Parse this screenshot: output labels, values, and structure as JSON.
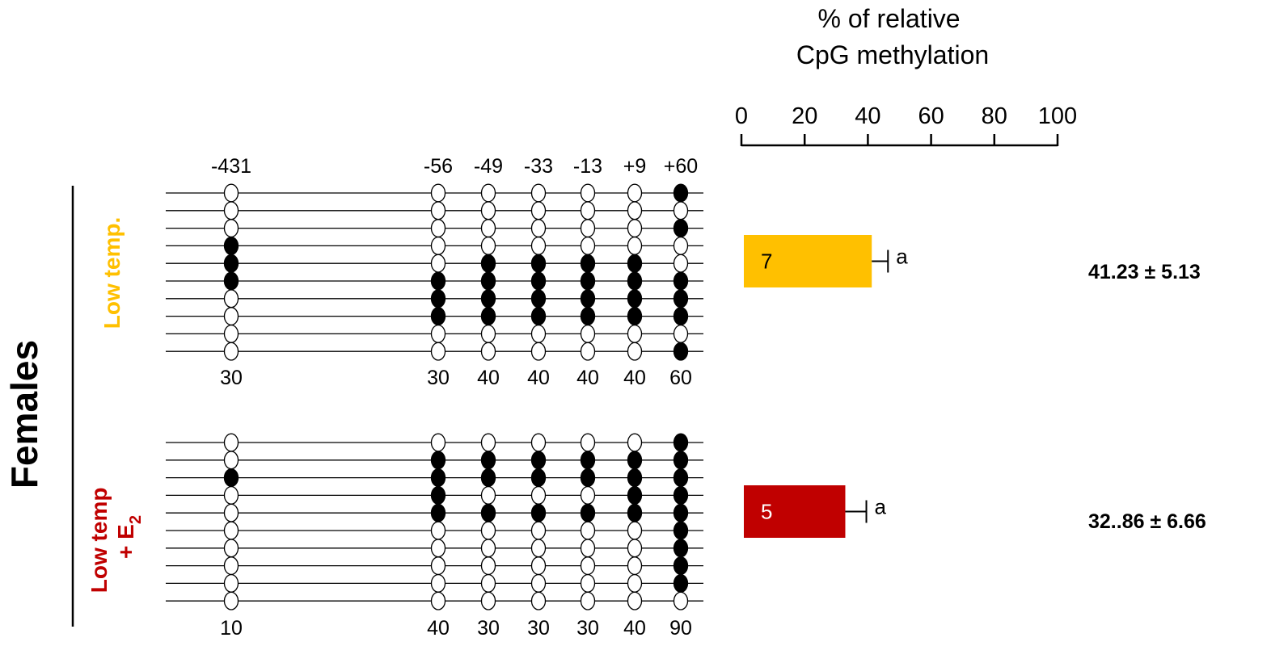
{
  "colors": {
    "filled": "#000000",
    "empty": "#ffffff",
    "low_temp": "#FFC000",
    "low_temp_e2": "#C00000"
  },
  "side_label": "Females",
  "site_labels": [
    "-431",
    "-56",
    "-49",
    "-33",
    "-13",
    "+9",
    "+60"
  ],
  "chart_data": {
    "type": "bar",
    "orientation": "horizontal",
    "title": "% of relative CpG methylation",
    "title_lines": [
      "% of relative",
      "CpG methylation"
    ],
    "xlim": [
      0,
      100
    ],
    "ticks": [
      0,
      20,
      40,
      60,
      80,
      100
    ],
    "categories": [
      "Low temp.",
      "Low temp + E2"
    ],
    "values": [
      41.23,
      32.86
    ],
    "errors": [
      5.13,
      6.66
    ],
    "bar_labels": [
      "7",
      "5"
    ],
    "letters": [
      "a",
      "a"
    ],
    "value_texts": [
      "41.23 ± 5.13",
      "32..86 ± 6.66"
    ]
  },
  "groups": [
    {
      "label": "Low temp.",
      "label_lines": [
        "Low temp."
      ],
      "percentages": [
        "30",
        "30",
        "40",
        "40",
        "40",
        "40",
        "60"
      ],
      "clones": [
        [
          0,
          0,
          0,
          0,
          0,
          0,
          1
        ],
        [
          0,
          0,
          0,
          0,
          0,
          0,
          0
        ],
        [
          0,
          0,
          0,
          0,
          0,
          0,
          1
        ],
        [
          1,
          0,
          0,
          0,
          0,
          0,
          0
        ],
        [
          1,
          0,
          1,
          1,
          1,
          1,
          0
        ],
        [
          1,
          1,
          1,
          1,
          1,
          1,
          1
        ],
        [
          0,
          1,
          1,
          1,
          1,
          1,
          1
        ],
        [
          0,
          1,
          1,
          1,
          1,
          1,
          1
        ],
        [
          0,
          0,
          0,
          0,
          0,
          0,
          0
        ],
        [
          0,
          0,
          0,
          0,
          0,
          0,
          1
        ]
      ]
    },
    {
      "label": "Low temp + E2",
      "label_lines": [
        "Low temp",
        "+ E",
        "2"
      ],
      "percentages": [
        "10",
        "40",
        "30",
        "30",
        "30",
        "40",
        "90"
      ],
      "clones": [
        [
          0,
          0,
          0,
          0,
          0,
          0,
          1
        ],
        [
          0,
          1,
          1,
          1,
          1,
          1,
          1
        ],
        [
          1,
          1,
          1,
          1,
          1,
          1,
          1
        ],
        [
          0,
          1,
          0,
          0,
          0,
          1,
          1
        ],
        [
          0,
          1,
          1,
          1,
          1,
          1,
          1
        ],
        [
          0,
          0,
          0,
          0,
          0,
          0,
          1
        ],
        [
          0,
          0,
          0,
          0,
          0,
          0,
          1
        ],
        [
          0,
          0,
          0,
          0,
          0,
          0,
          1
        ],
        [
          0,
          0,
          0,
          0,
          0,
          0,
          1
        ],
        [
          0,
          0,
          0,
          0,
          0,
          0,
          0
        ]
      ]
    }
  ]
}
